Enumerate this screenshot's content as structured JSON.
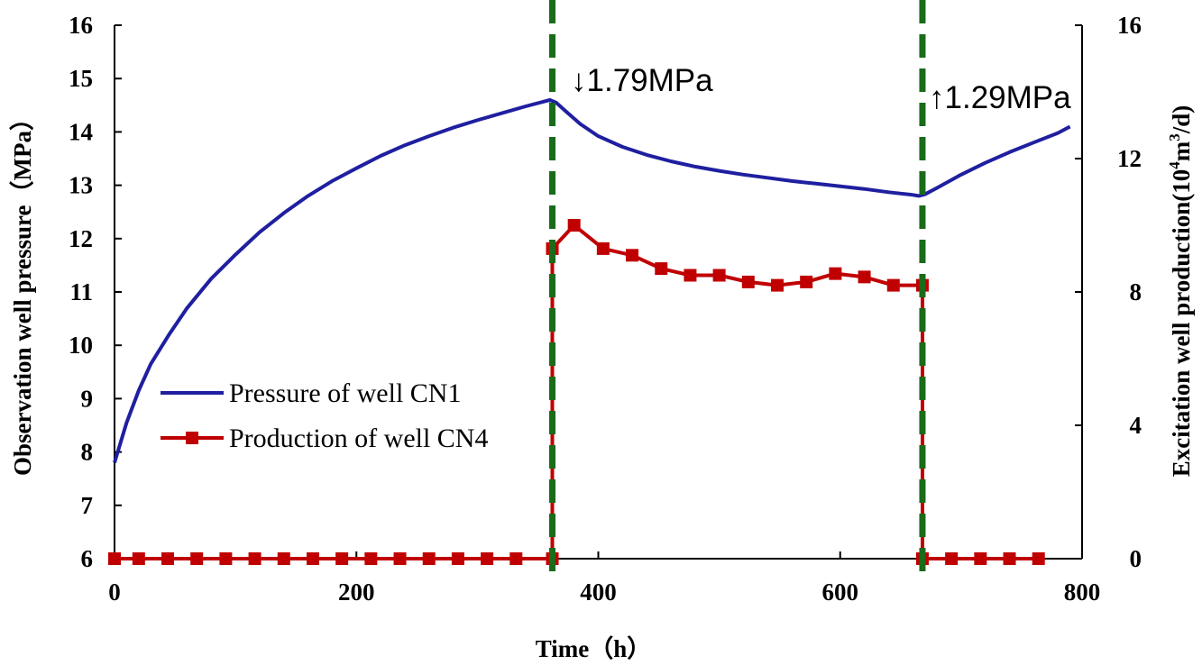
{
  "chart_data": {
    "type": "line",
    "title": "",
    "xlabel": "Time（h）",
    "ylabel": "Observation well pressure（MPa）",
    "ylabel_right_main": "Excitation well production(10",
    "ylabel_right_sup": "4",
    "ylabel_right_tail": "m",
    "ylabel_right_sup2": "3",
    "ylabel_right_end": "/d)",
    "xlim": [
      0,
      800
    ],
    "ylim": [
      6,
      16
    ],
    "y2lim": [
      0,
      16
    ],
    "x_ticks": [
      0,
      200,
      400,
      600,
      800
    ],
    "x_tick_labels": [
      "0",
      "200",
      "400",
      "600",
      "800"
    ],
    "y_ticks": [
      6,
      7,
      8,
      9,
      10,
      11,
      12,
      13,
      14,
      15,
      16
    ],
    "y_tick_labels": [
      "6",
      "7",
      "8",
      "9",
      "10",
      "11",
      "12",
      "13",
      "14",
      "15",
      "16"
    ],
    "y2_ticks": [
      0,
      4,
      8,
      12,
      16
    ],
    "y2_tick_labels": [
      "0",
      "4",
      "8",
      "12",
      "16"
    ],
    "grid": false,
    "legend_position": "left-middle",
    "series": [
      {
        "name": "Pressure of well CN1",
        "axis": "left",
        "color": "#1f1fa0",
        "marker": "none",
        "x": [
          0,
          10,
          20,
          30,
          45,
          60,
          80,
          100,
          120,
          140,
          160,
          180,
          200,
          220,
          240,
          260,
          280,
          300,
          320,
          340,
          360,
          365,
          375,
          385,
          400,
          420,
          440,
          460,
          480,
          500,
          520,
          540,
          560,
          580,
          600,
          620,
          640,
          660,
          665,
          670,
          680,
          700,
          720,
          740,
          760,
          780,
          790
        ],
        "values": [
          7.8,
          8.55,
          9.15,
          9.65,
          10.2,
          10.7,
          11.25,
          11.7,
          12.12,
          12.48,
          12.8,
          13.08,
          13.32,
          13.55,
          13.75,
          13.92,
          14.08,
          14.22,
          14.35,
          14.48,
          14.6,
          14.55,
          14.35,
          14.15,
          13.92,
          13.72,
          13.57,
          13.45,
          13.35,
          13.27,
          13.2,
          13.14,
          13.08,
          13.03,
          12.98,
          12.93,
          12.87,
          12.82,
          12.8,
          12.83,
          12.95,
          13.2,
          13.42,
          13.62,
          13.8,
          13.98,
          14.1
        ]
      },
      {
        "name": "Production of well CN4",
        "axis": "right",
        "color": "#c00000",
        "marker": "square",
        "x": [
          0,
          20,
          44,
          68,
          92,
          116,
          140,
          164,
          188,
          212,
          236,
          260,
          284,
          308,
          332,
          362,
          362,
          380,
          404,
          428,
          452,
          476,
          500,
          524,
          548,
          572,
          596,
          620,
          644,
          668,
          668,
          692,
          716,
          740,
          764
        ],
        "values": [
          0,
          0,
          0,
          0,
          0,
          0,
          0,
          0,
          0,
          0,
          0,
          0,
          0,
          0,
          0,
          0,
          9.3,
          10.0,
          9.3,
          9.1,
          8.7,
          8.5,
          8.5,
          8.3,
          8.2,
          8.3,
          8.55,
          8.45,
          8.2,
          8.2,
          0,
          0,
          0,
          0,
          0
        ]
      }
    ],
    "vertical_lines": [
      {
        "x": 362,
        "color": "#1a6b1a",
        "style": "dashed"
      },
      {
        "x": 668,
        "color": "#1a6b1a",
        "style": "dashed"
      }
    ],
    "annotations": [
      {
        "text": "↓1.79MPa",
        "x": 378,
        "y": 15.5
      },
      {
        "text": "↑1.29MPa",
        "x": 672,
        "y": 14.7
      }
    ]
  }
}
